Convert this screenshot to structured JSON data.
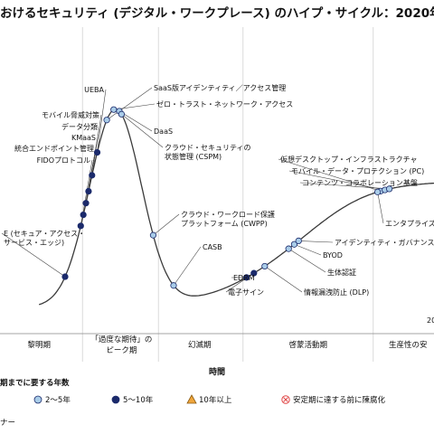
{
  "title": "おけるセキュリティ (デジタル・ワークプレース) のハイプ・サイクル：2020年",
  "chart_data": {
    "type": "scatter",
    "title": "おけるセキュリティ (デジタル・ワークプレース) のハイプ・サイクル：2020年",
    "xlabel": "時間",
    "ylabel": "",
    "phases": [
      "黎明期",
      "「過度な期待」のピーク期",
      "幻滅期",
      "啓蒙活動期",
      "生産性の安"
    ],
    "as_of_note": "20",
    "series": [
      {
        "name": "2～5年",
        "color": "#a9cce8",
        "points": [
          {
            "label": "SaaS版アイデンティティ／アクセス管理",
            "curve_pos": 0.246
          },
          {
            "label": "ゼロ・トラスト・ネットワーク・アクセス",
            "curve_pos": 0.262
          },
          {
            "label": "DaaS",
            "curve_pos": 0.275
          },
          {
            "label": "クラウド・セキュリティの状態管理 (CSPM)",
            "curve_pos": 0.28
          },
          {
            "label": "クラウド・ワークロード保護プラットフォーム (CWPP)",
            "curve_pos": 0.353
          },
          {
            "label": "CASB",
            "curve_pos": 0.4
          },
          {
            "label": "情報漏洩防止 (DLP)",
            "curve_pos": 0.61
          },
          {
            "label": "生体認証",
            "curve_pos": 0.665
          },
          {
            "label": "BYOD",
            "curve_pos": 0.678
          },
          {
            "label": "アイデンティティ・ガバナンス／",
            "curve_pos": 0.688
          },
          {
            "label": "仮想デスクトップ・インフラストラクチャ",
            "curve_pos": 0.877
          },
          {
            "label": "モバイル・データ・プロテクション (PC)",
            "curve_pos": 0.887
          },
          {
            "label": "コンテンツ・コラボレーション基盤",
            "curve_pos": 0.897
          },
          {
            "label": "エンタプライズ・モビ",
            "curve_pos": 0.87
          }
        ]
      },
      {
        "name": "5～10年",
        "color": "#1b2a6b",
        "points": [
          {
            "label": "UEBA",
            "curve_pos": 0.224
          },
          {
            "label": "モバイル脅威対策",
            "curve_pos": 0.212
          },
          {
            "label": "データ分類",
            "curve_pos": 0.204
          },
          {
            "label": "KMaaS",
            "curve_pos": 0.198
          },
          {
            "label": "統合エンドポイント管理",
            "curve_pos": 0.192
          },
          {
            "label": "FIDOプロトコル",
            "curve_pos": 0.186
          },
          {
            "label": "E (セキュア・アクセス・サービス・エッジ)",
            "curve_pos": 0.15
          },
          {
            "label": "EDRM",
            "curve_pos": 0.568
          },
          {
            "label": "電子サイン",
            "curve_pos": 0.585
          }
        ]
      },
      {
        "name": "10年以上",
        "color": "#f0a63c",
        "points": []
      },
      {
        "name": "安定期に達する前に陳腐化",
        "color": "#e04848",
        "points": []
      }
    ],
    "legend_title": "期までに要する年数",
    "legend_position": "bottom",
    "footer": "ナー"
  }
}
